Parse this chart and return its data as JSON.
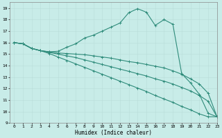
{
  "line_color": "#2e8b7a",
  "bg_color": "#c8ece8",
  "grid_color": "#b8dcd8",
  "xlabel": "Humidex (Indice chaleur)",
  "xlim": [
    -0.5,
    23
  ],
  "ylim": [
    9,
    19.5
  ],
  "yticks": [
    9,
    10,
    11,
    12,
    13,
    14,
    15,
    16,
    17,
    18,
    19
  ],
  "xticks": [
    0,
    1,
    2,
    3,
    4,
    5,
    6,
    7,
    8,
    9,
    10,
    11,
    12,
    13,
    14,
    15,
    16,
    17,
    18,
    19,
    20,
    21,
    22,
    23
  ],
  "curve1_x": [
    0,
    1,
    2,
    3,
    4,
    5,
    6,
    7,
    8,
    9,
    10,
    11,
    12,
    13,
    14,
    15,
    16,
    17,
    18,
    19,
    20,
    21,
    22,
    23
  ],
  "curve1_y": [
    16.0,
    15.9,
    15.5,
    15.3,
    15.2,
    15.25,
    15.6,
    15.9,
    16.4,
    16.65,
    17.0,
    17.35,
    17.7,
    18.6,
    18.95,
    18.65,
    17.5,
    18.0,
    17.6,
    13.3,
    12.5,
    11.5,
    9.85,
    9.55
  ],
  "curve2_x": [
    0,
    1,
    2,
    3,
    4,
    5,
    6,
    7,
    8,
    9,
    10,
    11,
    12,
    13,
    14,
    15,
    16,
    17,
    18,
    19,
    20,
    21,
    22,
    23
  ],
  "curve2_y": [
    16.0,
    15.9,
    15.5,
    15.3,
    15.2,
    15.1,
    15.05,
    15.0,
    14.95,
    14.85,
    14.75,
    14.65,
    14.5,
    14.35,
    14.25,
    14.1,
    13.95,
    13.8,
    13.55,
    13.25,
    12.85,
    12.4,
    11.6,
    9.55
  ],
  "curve3_x": [
    0,
    1,
    2,
    3,
    4,
    5,
    6,
    7,
    8,
    9,
    10,
    11,
    12,
    13,
    14,
    15,
    16,
    17,
    18,
    19,
    20,
    21,
    22,
    23
  ],
  "curve3_y": [
    16.0,
    15.9,
    15.5,
    15.3,
    15.15,
    15.0,
    14.85,
    14.7,
    14.5,
    14.3,
    14.1,
    13.9,
    13.7,
    13.5,
    13.3,
    13.1,
    12.85,
    12.65,
    12.4,
    12.1,
    11.8,
    11.4,
    10.9,
    9.55
  ],
  "curve4_x": [
    0,
    1,
    2,
    3,
    4,
    5,
    6,
    7,
    8,
    9,
    10,
    11,
    12,
    13,
    14,
    15,
    16,
    17,
    18,
    19,
    20,
    21,
    22,
    23
  ],
  "curve4_y": [
    16.0,
    15.9,
    15.5,
    15.3,
    15.05,
    14.75,
    14.45,
    14.15,
    13.85,
    13.55,
    13.25,
    12.95,
    12.65,
    12.35,
    12.05,
    11.75,
    11.4,
    11.1,
    10.8,
    10.45,
    10.15,
    9.8,
    9.55,
    9.55
  ]
}
